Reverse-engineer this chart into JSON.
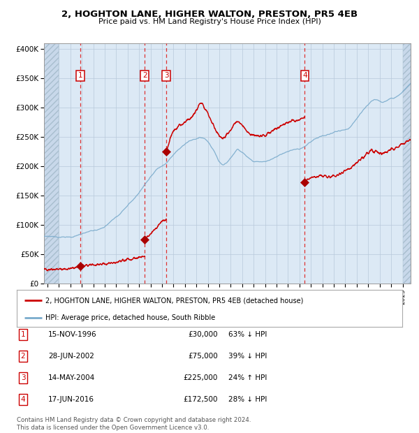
{
  "title": "2, HOGHTON LANE, HIGHER WALTON, PRESTON, PR5 4EB",
  "subtitle": "Price paid vs. HM Land Registry's House Price Index (HPI)",
  "sale_prices": [
    30000,
    75000,
    225000,
    172500
  ],
  "sale_labels": [
    "1",
    "2",
    "3",
    "4"
  ],
  "hpi_pct": [
    "63% ↓ HPI",
    "39% ↓ HPI",
    "24% ↑ HPI",
    "28% ↓ HPI"
  ],
  "sale_dates_str": [
    "15-NOV-1996",
    "28-JUN-2002",
    "14-MAY-2004",
    "17-JUN-2016"
  ],
  "sale_prices_str": [
    "£30,000",
    "£75,000",
    "£225,000",
    "£172,500"
  ],
  "sale_years": [
    1996.876,
    2002.493,
    2004.369,
    2016.461
  ],
  "legend_property": "2, HOGHTON LANE, HIGHER WALTON, PRESTON, PR5 4EB (detached house)",
  "legend_hpi": "HPI: Average price, detached house, South Ribble",
  "footer": "Contains HM Land Registry data © Crown copyright and database right 2024.\nThis data is licensed under the Open Government Licence v3.0.",
  "bg_color": "#dce9f5",
  "hatch_color": "#c8d8ea",
  "red_line_color": "#cc0000",
  "blue_line_color": "#7aabcc",
  "dot_color": "#aa0000",
  "vline_color": "#dd3333",
  "box_edge_color": "#cc0000",
  "ylim": [
    0,
    410000
  ],
  "xlim_start": 1993.7,
  "xlim_end": 2025.7,
  "hatch_left_end": 1994.95,
  "hatch_right_start": 2025.0
}
